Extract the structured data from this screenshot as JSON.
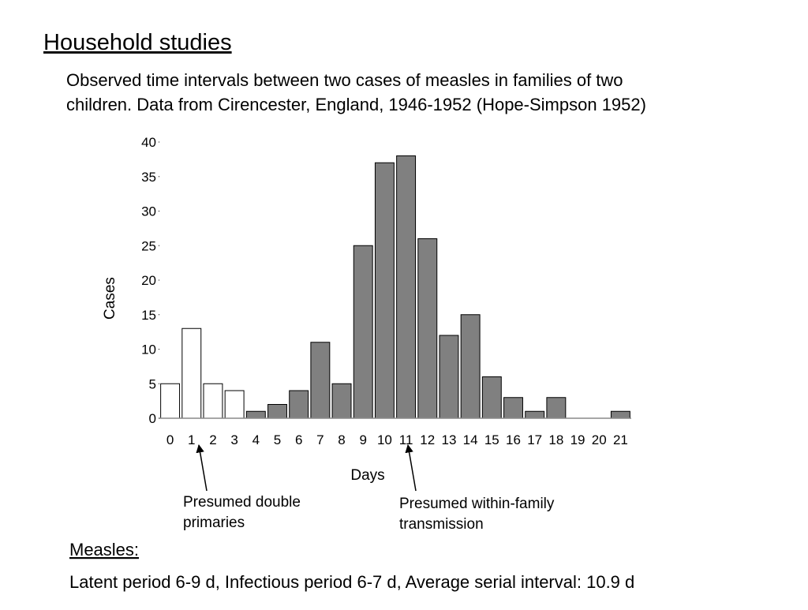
{
  "slide": {
    "heading": "Household studies",
    "description": [
      "Observed time intervals between two cases of measles in families of two",
      "children. Data from Cirencester, England, 1946-1952 (Hope-Simpson 1952)"
    ],
    "footer_heading": "Measles:",
    "footer_text": "Latent period 6-9 d, Infectious period 6-7 d, Average serial interval: 10.9 d"
  },
  "chart_data": {
    "type": "bar",
    "xlabel": "Days",
    "ylabel": "Cases",
    "categories": [
      "0",
      "1",
      "2",
      "3",
      "4",
      "5",
      "6",
      "7",
      "8",
      "9",
      "10",
      "11",
      "12",
      "13",
      "14",
      "15",
      "16",
      "17",
      "18",
      "19",
      "20",
      "21"
    ],
    "values": [
      5,
      13,
      5,
      4,
      1,
      2,
      4,
      11,
      5,
      25,
      37,
      38,
      26,
      12,
      15,
      6,
      3,
      1,
      3,
      0,
      0,
      1
    ],
    "colors": [
      "#ffffff",
      "#ffffff",
      "#ffffff",
      "#ffffff",
      "#808080",
      "#808080",
      "#808080",
      "#808080",
      "#808080",
      "#808080",
      "#808080",
      "#808080",
      "#808080",
      "#808080",
      "#808080",
      "#808080",
      "#808080",
      "#808080",
      "#808080",
      "#808080",
      "#808080",
      "#808080"
    ],
    "ylim": [
      0,
      40
    ],
    "yticks": [
      0,
      5,
      10,
      15,
      20,
      25,
      30,
      35,
      40
    ],
    "annotations": [
      {
        "lines": [
          "Presumed double",
          "primaries"
        ]
      },
      {
        "lines": [
          "Presumed within-family",
          "transmission"
        ]
      }
    ]
  }
}
